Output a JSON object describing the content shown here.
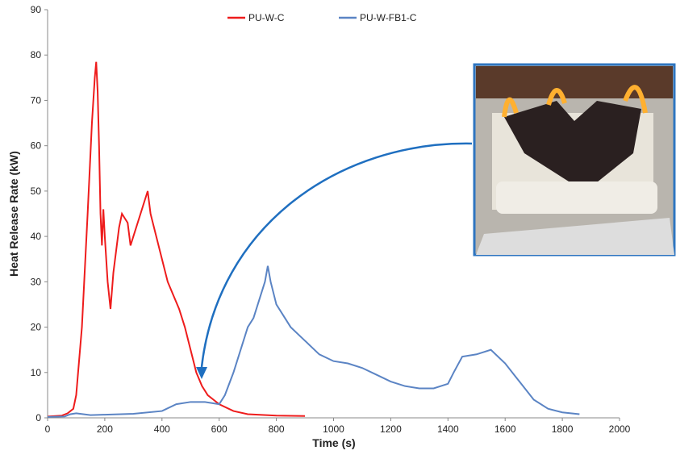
{
  "chart_data": {
    "type": "line",
    "x_label": "Time (s)",
    "y_label": "Heat Release Rate (kW)",
    "xlim": [
      0,
      2000
    ],
    "xticks": [
      0,
      200,
      400,
      600,
      800,
      1000,
      1200,
      1400,
      1600,
      1800,
      2000
    ],
    "ylim": [
      0,
      90
    ],
    "yticks": [
      0,
      10,
      20,
      30,
      40,
      50,
      60,
      70,
      80,
      90
    ],
    "grid": false,
    "legend": "top",
    "series": [
      {
        "name": "PU-W-C",
        "color": "#ee1c1c",
        "x": [
          0,
          50,
          70,
          90,
          100,
          120,
          140,
          155,
          165,
          170,
          175,
          180,
          185,
          190,
          195,
          200,
          210,
          220,
          230,
          250,
          260,
          270,
          280,
          290,
          300,
          320,
          340,
          350,
          360,
          380,
          400,
          420,
          440,
          460,
          480,
          500,
          520,
          540,
          560,
          580,
          600,
          650,
          700,
          800,
          900
        ],
        "values": [
          0.3,
          0.5,
          1,
          2,
          5,
          20,
          45,
          65,
          75,
          78.5,
          72,
          60,
          45,
          38,
          46,
          40,
          30,
          24,
          32,
          42,
          45,
          44,
          43,
          38,
          40,
          44,
          48,
          50,
          45,
          40,
          35,
          30,
          27,
          24,
          20,
          15,
          10,
          7,
          5,
          4,
          3,
          1.5,
          0.8,
          0.5,
          0.4
        ]
      },
      {
        "name": "PU-W-FB1-C",
        "color": "#5b84c4",
        "x": [
          0,
          60,
          80,
          100,
          150,
          200,
          300,
          400,
          450,
          500,
          550,
          600,
          620,
          650,
          680,
          700,
          720,
          740,
          760,
          770,
          780,
          800,
          820,
          850,
          900,
          950,
          1000,
          1050,
          1100,
          1150,
          1200,
          1250,
          1300,
          1350,
          1400,
          1420,
          1450,
          1500,
          1550,
          1600,
          1650,
          1700,
          1750,
          1800,
          1860
        ],
        "values": [
          0.2,
          0.3,
          0.8,
          1,
          0.6,
          0.7,
          0.9,
          1.5,
          3,
          3.5,
          3.5,
          3,
          5,
          10,
          16,
          20,
          22,
          26,
          30,
          33.5,
          30,
          25,
          23,
          20,
          17,
          14,
          12.5,
          12,
          11,
          9.5,
          8,
          7,
          6.5,
          6.5,
          7.5,
          10,
          13.5,
          14,
          15,
          12,
          8,
          4,
          2,
          1.2,
          0.8
        ]
      }
    ]
  }
}
